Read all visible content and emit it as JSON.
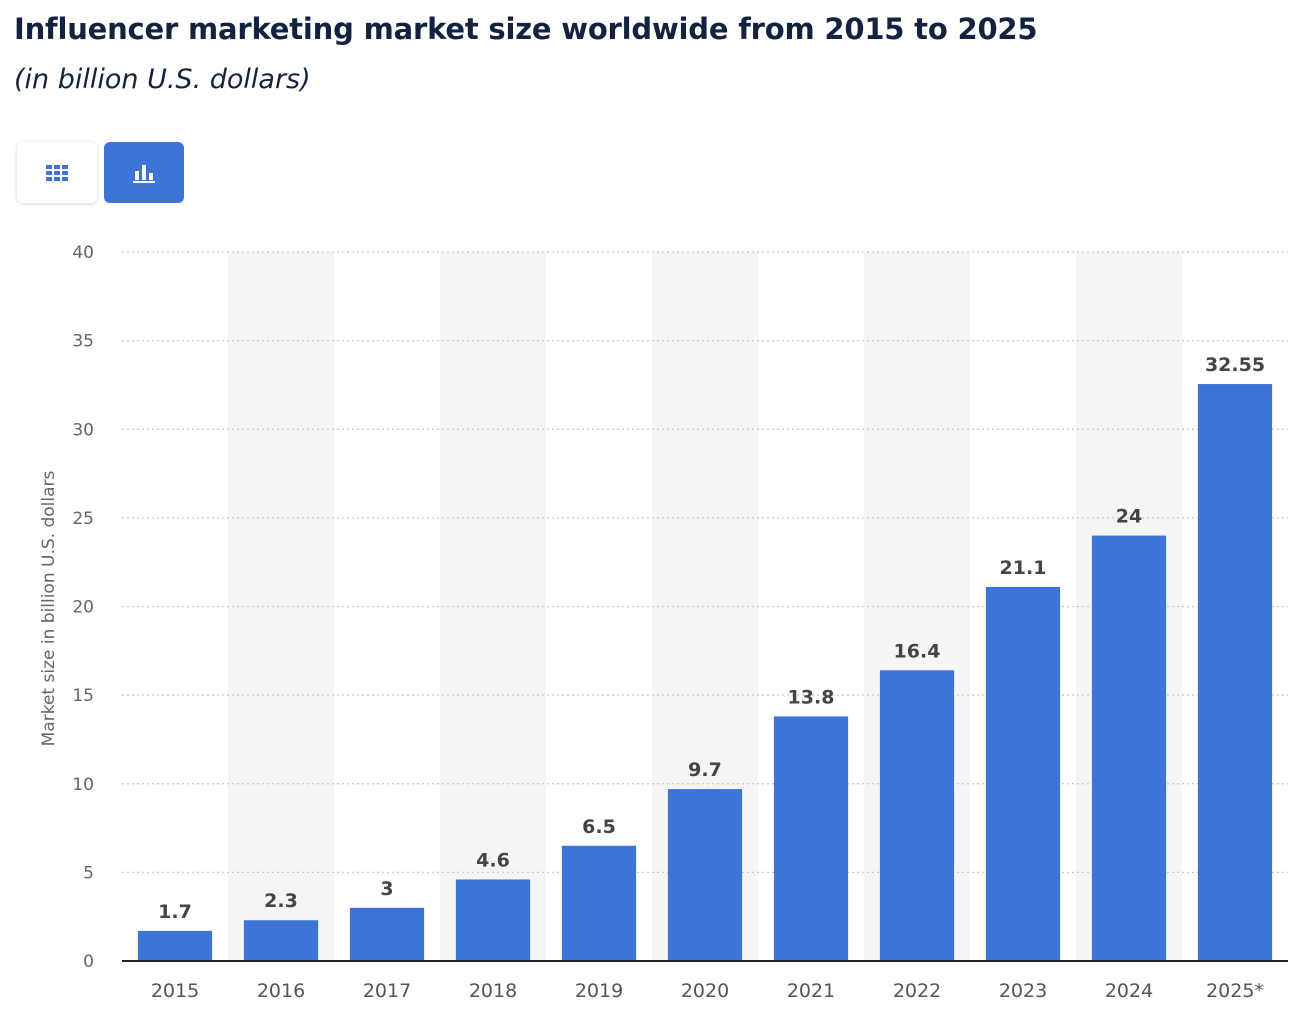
{
  "header": {
    "title": "Influencer marketing market size worldwide from 2015 to 2025",
    "subtitle": "(in billion U.S. dollars)"
  },
  "view_toggle": {
    "table_icon": "table-grid-icon",
    "chart_icon": "bar-chart-icon",
    "active": "chart",
    "active_color": "#3e74d8",
    "icon_color": "#3e74d8"
  },
  "colors": {
    "bar": "#3e74d8",
    "band": "#f5f5f5",
    "grid": "#c8c8c8",
    "axis": "#222222"
  },
  "chart_data": {
    "type": "bar",
    "title": "Influencer marketing market size worldwide from 2015 to 2025",
    "subtitle": "(in billion U.S. dollars)",
    "categories": [
      "2015",
      "2016",
      "2017",
      "2018",
      "2019",
      "2020",
      "2021",
      "2022",
      "2023",
      "2024",
      "2025*"
    ],
    "values": [
      1.7,
      2.3,
      3,
      4.6,
      6.5,
      9.7,
      13.8,
      16.4,
      21.1,
      24,
      32.55
    ],
    "value_labels": [
      "1.7",
      "2.3",
      "3",
      "4.6",
      "6.5",
      "9.7",
      "13.8",
      "16.4",
      "21.1",
      "24",
      "32.55"
    ],
    "xlabel": "",
    "ylabel": "Market size in billion U.S. dollars",
    "ylim": [
      0,
      40
    ],
    "yticks": [
      0,
      5,
      10,
      15,
      20,
      25,
      30,
      35,
      40
    ],
    "grid": true,
    "alternating_bands": true
  }
}
